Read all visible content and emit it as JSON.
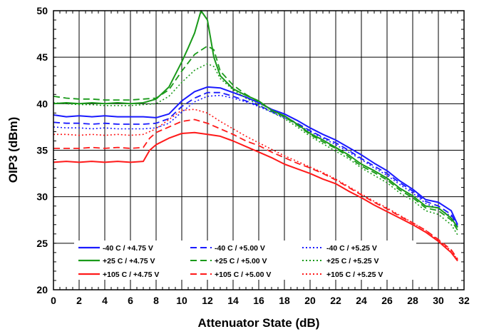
{
  "chart_data": {
    "type": "line",
    "title": "",
    "xlabel": "Attenuator State (dB)",
    "ylabel": "OIP3 (dBm)",
    "xlim": [
      0,
      32
    ],
    "ylim": [
      20,
      50
    ],
    "x_ticks": [
      "0",
      "2",
      "4",
      "6",
      "8",
      "10",
      "12",
      "14",
      "16",
      "18",
      "20",
      "22",
      "24",
      "26",
      "28",
      "30",
      "32"
    ],
    "y_ticks": [
      "20",
      "25",
      "30",
      "35",
      "40",
      "45",
      "50"
    ],
    "grid": true,
    "legend_position": "bottom-left, three columns",
    "colors": {
      "blue": "#1a1aff",
      "green": "#1a9a1a",
      "red": "#ff1a1a"
    },
    "series": [
      {
        "name": "-40 C / +4.75 V",
        "color": "blue",
        "dash": "solid",
        "points": [
          [
            0,
            38.8
          ],
          [
            1,
            38.6
          ],
          [
            2,
            38.7
          ],
          [
            3,
            38.6
          ],
          [
            4,
            38.7
          ],
          [
            5,
            38.6
          ],
          [
            6,
            38.6
          ],
          [
            7,
            38.6
          ],
          [
            8,
            38.5
          ],
          [
            9,
            38.9
          ],
          [
            10,
            40.3
          ],
          [
            11,
            41.3
          ],
          [
            12,
            41.8
          ],
          [
            13,
            41.7
          ],
          [
            14,
            41.2
          ],
          [
            15,
            40.7
          ],
          [
            16,
            40.1
          ],
          [
            17,
            39.4
          ],
          [
            18,
            38.9
          ],
          [
            19,
            38.2
          ],
          [
            20,
            37.4
          ],
          [
            21,
            36.7
          ],
          [
            22,
            36.1
          ],
          [
            23,
            35.3
          ],
          [
            24,
            34.5
          ],
          [
            25,
            33.6
          ],
          [
            26,
            32.8
          ],
          [
            27,
            31.7
          ],
          [
            28,
            30.8
          ],
          [
            29,
            29.7
          ],
          [
            30,
            29.4
          ],
          [
            31,
            28.5
          ],
          [
            31.5,
            27.0
          ]
        ]
      },
      {
        "name": "-40 C / +5.00 V",
        "color": "blue",
        "dash": "dashed",
        "points": [
          [
            0,
            38.0
          ],
          [
            1,
            37.9
          ],
          [
            2,
            37.9
          ],
          [
            3,
            37.8
          ],
          [
            4,
            37.9
          ],
          [
            5,
            37.8
          ],
          [
            6,
            37.8
          ],
          [
            7,
            37.8
          ],
          [
            8,
            37.9
          ],
          [
            9,
            38.4
          ],
          [
            10,
            39.7
          ],
          [
            11,
            40.6
          ],
          [
            12,
            41.2
          ],
          [
            13,
            41.2
          ],
          [
            14,
            40.8
          ],
          [
            15,
            40.3
          ],
          [
            16,
            39.8
          ],
          [
            17,
            39.2
          ],
          [
            18,
            38.6
          ],
          [
            19,
            37.9
          ],
          [
            20,
            37.1
          ],
          [
            21,
            36.4
          ],
          [
            22,
            35.8
          ],
          [
            23,
            35.0
          ],
          [
            24,
            34.1
          ],
          [
            25,
            33.3
          ],
          [
            26,
            32.5
          ],
          [
            27,
            31.5
          ],
          [
            28,
            30.6
          ],
          [
            29,
            29.5
          ],
          [
            30,
            29.0
          ],
          [
            31,
            28.1
          ],
          [
            31.5,
            26.8
          ]
        ]
      },
      {
        "name": "-40 C / +5.25 V",
        "color": "blue",
        "dash": "dotted",
        "points": [
          [
            0,
            37.5
          ],
          [
            1,
            37.4
          ],
          [
            2,
            37.4
          ],
          [
            3,
            37.3
          ],
          [
            4,
            37.4
          ],
          [
            5,
            37.3
          ],
          [
            6,
            37.3
          ],
          [
            7,
            37.3
          ],
          [
            8,
            37.4
          ],
          [
            9,
            37.9
          ],
          [
            10,
            39.1
          ],
          [
            11,
            40.2
          ],
          [
            12,
            40.8
          ],
          [
            13,
            40.9
          ],
          [
            14,
            40.6
          ],
          [
            15,
            40.2
          ],
          [
            16,
            39.7
          ],
          [
            17,
            39.1
          ],
          [
            18,
            38.5
          ],
          [
            19,
            37.8
          ],
          [
            20,
            37.0
          ],
          [
            21,
            36.3
          ],
          [
            22,
            35.6
          ],
          [
            23,
            34.8
          ],
          [
            24,
            34.0
          ],
          [
            25,
            33.1
          ],
          [
            26,
            32.3
          ],
          [
            27,
            31.3
          ],
          [
            28,
            30.4
          ],
          [
            29,
            29.3
          ],
          [
            30,
            28.7
          ],
          [
            31,
            27.9
          ],
          [
            31.5,
            26.6
          ]
        ]
      },
      {
        "name": "+25 C / +4.75 V",
        "color": "green",
        "dash": "solid",
        "points": [
          [
            0,
            40.0
          ],
          [
            1,
            40.1
          ],
          [
            2,
            40.0
          ],
          [
            3,
            40.1
          ],
          [
            4,
            40.0
          ],
          [
            5,
            40.1
          ],
          [
            6,
            40.0
          ],
          [
            7,
            40.1
          ],
          [
            8,
            40.5
          ],
          [
            9,
            41.8
          ],
          [
            10,
            44.5
          ],
          [
            10.5,
            46.0
          ],
          [
            11,
            47.6
          ],
          [
            11.5,
            50.0
          ],
          [
            12,
            49.0
          ],
          [
            12.5,
            45.0
          ],
          [
            13,
            43.0
          ],
          [
            14,
            41.6
          ],
          [
            15,
            40.9
          ],
          [
            16,
            40.3
          ],
          [
            17,
            39.3
          ],
          [
            18,
            38.7
          ],
          [
            19,
            37.8
          ],
          [
            20,
            36.8
          ],
          [
            21,
            36.1
          ],
          [
            22,
            35.3
          ],
          [
            23,
            34.5
          ],
          [
            24,
            33.5
          ],
          [
            25,
            32.8
          ],
          [
            26,
            32.0
          ],
          [
            27,
            30.9
          ],
          [
            28,
            30.1
          ],
          [
            29,
            29.0
          ],
          [
            30,
            28.8
          ],
          [
            31,
            27.7
          ],
          [
            31.5,
            26.7
          ]
        ]
      },
      {
        "name": "+25 C / +5.00 V",
        "color": "green",
        "dash": "dashed",
        "points": [
          [
            0,
            40.8
          ],
          [
            1,
            40.6
          ],
          [
            2,
            40.5
          ],
          [
            3,
            40.5
          ],
          [
            4,
            40.4
          ],
          [
            5,
            40.4
          ],
          [
            6,
            40.4
          ],
          [
            7,
            40.5
          ],
          [
            8,
            40.6
          ],
          [
            9,
            41.5
          ],
          [
            10,
            43.5
          ],
          [
            11,
            45.3
          ],
          [
            12,
            46.2
          ],
          [
            12.5,
            45.8
          ],
          [
            13,
            43.5
          ],
          [
            14,
            42.0
          ],
          [
            15,
            41.0
          ],
          [
            16,
            40.2
          ],
          [
            17,
            39.3
          ],
          [
            18,
            38.6
          ],
          [
            19,
            37.7
          ],
          [
            20,
            36.7
          ],
          [
            21,
            35.9
          ],
          [
            22,
            35.2
          ],
          [
            23,
            34.3
          ],
          [
            24,
            33.3
          ],
          [
            25,
            32.6
          ],
          [
            26,
            31.8
          ],
          [
            27,
            30.7
          ],
          [
            28,
            29.9
          ],
          [
            29,
            28.8
          ],
          [
            30,
            28.5
          ],
          [
            31,
            27.5
          ],
          [
            31.5,
            26.4
          ]
        ]
      },
      {
        "name": "+25 C / +5.25 V",
        "color": "green",
        "dash": "dotted",
        "points": [
          [
            0,
            40.1
          ],
          [
            1,
            40.0
          ],
          [
            2,
            39.9
          ],
          [
            3,
            39.9
          ],
          [
            4,
            39.8
          ],
          [
            5,
            39.8
          ],
          [
            6,
            39.8
          ],
          [
            7,
            39.9
          ],
          [
            8,
            40.0
          ],
          [
            9,
            40.8
          ],
          [
            10,
            42.3
          ],
          [
            11,
            43.6
          ],
          [
            12,
            44.3
          ],
          [
            12.5,
            44.0
          ],
          [
            13,
            42.7
          ],
          [
            14,
            41.5
          ],
          [
            15,
            40.6
          ],
          [
            16,
            39.9
          ],
          [
            17,
            39.1
          ],
          [
            18,
            38.4
          ],
          [
            19,
            37.5
          ],
          [
            20,
            36.5
          ],
          [
            21,
            35.7
          ],
          [
            22,
            34.9
          ],
          [
            23,
            34.1
          ],
          [
            24,
            33.1
          ],
          [
            25,
            32.3
          ],
          [
            26,
            31.5
          ],
          [
            27,
            30.4
          ],
          [
            28,
            29.6
          ],
          [
            29,
            28.5
          ],
          [
            30,
            28.1
          ],
          [
            31,
            27.0
          ],
          [
            31.5,
            25.9
          ]
        ]
      },
      {
        "name": "+105 C / +4.75 V",
        "color": "red",
        "dash": "solid",
        "points": [
          [
            0,
            33.7
          ],
          [
            1,
            33.8
          ],
          [
            2,
            33.7
          ],
          [
            3,
            33.8
          ],
          [
            4,
            33.7
          ],
          [
            5,
            33.8
          ],
          [
            6,
            33.7
          ],
          [
            7,
            33.8
          ],
          [
            7.5,
            35.0
          ],
          [
            8,
            35.6
          ],
          [
            9,
            36.3
          ],
          [
            10,
            36.8
          ],
          [
            11,
            36.9
          ],
          [
            12,
            36.7
          ],
          [
            13,
            36.5
          ],
          [
            14,
            36.0
          ],
          [
            15,
            35.4
          ],
          [
            16,
            34.8
          ],
          [
            17,
            34.2
          ],
          [
            18,
            33.5
          ],
          [
            19,
            33.0
          ],
          [
            20,
            32.5
          ],
          [
            21,
            31.9
          ],
          [
            22,
            31.4
          ],
          [
            23,
            30.6
          ],
          [
            24,
            29.9
          ],
          [
            25,
            29.1
          ],
          [
            26,
            28.4
          ],
          [
            27,
            27.7
          ],
          [
            28,
            27.0
          ],
          [
            29,
            26.2
          ],
          [
            30,
            25.2
          ],
          [
            31,
            24.0
          ],
          [
            31.5,
            23.1
          ]
        ]
      },
      {
        "name": "+105 C / +5.00 V",
        "color": "red",
        "dash": "dashed",
        "points": [
          [
            0,
            35.2
          ],
          [
            1,
            35.2
          ],
          [
            2,
            35.2
          ],
          [
            3,
            35.3
          ],
          [
            4,
            35.2
          ],
          [
            5,
            35.3
          ],
          [
            6,
            35.2
          ],
          [
            7,
            35.3
          ],
          [
            7.5,
            36.3
          ],
          [
            8,
            36.9
          ],
          [
            9,
            37.5
          ],
          [
            10,
            38.1
          ],
          [
            11,
            38.3
          ],
          [
            12,
            37.9
          ],
          [
            13,
            37.3
          ],
          [
            14,
            36.7
          ],
          [
            15,
            36.0
          ],
          [
            16,
            35.5
          ],
          [
            17,
            34.8
          ],
          [
            18,
            34.2
          ],
          [
            19,
            33.6
          ],
          [
            20,
            33.1
          ],
          [
            21,
            32.5
          ],
          [
            22,
            31.8
          ],
          [
            23,
            31.0
          ],
          [
            24,
            30.2
          ],
          [
            25,
            29.4
          ],
          [
            26,
            28.7
          ],
          [
            27,
            27.9
          ],
          [
            28,
            27.2
          ],
          [
            29,
            26.4
          ],
          [
            30,
            25.4
          ],
          [
            31,
            24.3
          ],
          [
            31.5,
            23.3
          ]
        ]
      },
      {
        "name": "+105 C / +5.25 V",
        "color": "red",
        "dash": "dotted",
        "points": [
          [
            0,
            36.7
          ],
          [
            1,
            36.7
          ],
          [
            2,
            36.6
          ],
          [
            3,
            36.7
          ],
          [
            4,
            36.6
          ],
          [
            5,
            36.7
          ],
          [
            6,
            36.6
          ],
          [
            7,
            36.7
          ],
          [
            8,
            37.3
          ],
          [
            9,
            38.3
          ],
          [
            10,
            39.3
          ],
          [
            11,
            39.4
          ],
          [
            12,
            39.0
          ],
          [
            13,
            38.1
          ],
          [
            14,
            37.3
          ],
          [
            15,
            36.5
          ],
          [
            16,
            35.8
          ],
          [
            17,
            35.1
          ],
          [
            18,
            34.4
          ],
          [
            19,
            33.8
          ],
          [
            20,
            33.2
          ],
          [
            21,
            32.6
          ],
          [
            22,
            31.9
          ],
          [
            23,
            31.1
          ],
          [
            24,
            30.3
          ],
          [
            25,
            29.5
          ],
          [
            26,
            28.8
          ],
          [
            27,
            28.0
          ],
          [
            28,
            27.2
          ],
          [
            29,
            26.4
          ],
          [
            30,
            25.3
          ],
          [
            31,
            24.2
          ],
          [
            31.5,
            23.2
          ]
        ]
      }
    ]
  }
}
